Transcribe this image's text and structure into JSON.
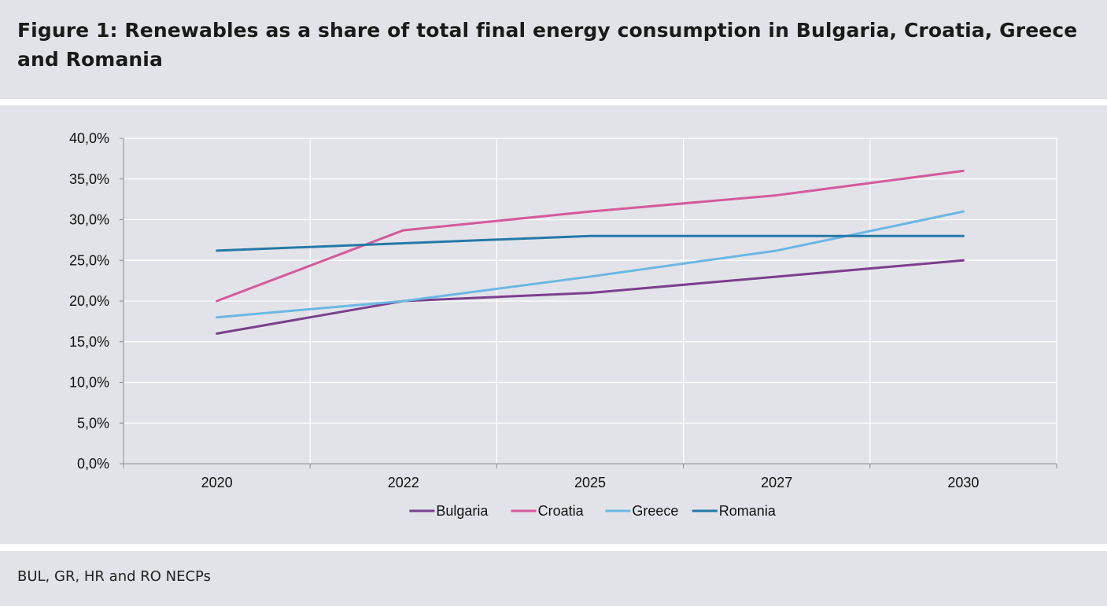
{
  "header": {
    "title": "Figure 1: Renewables as a share of total final energy consumption in Bulgaria, Croatia, Greece and Romania"
  },
  "footer": {
    "source": "BUL, GR, HR and RO NECPs"
  },
  "chart_data": {
    "type": "line",
    "title": "Figure 1: Renewables as a share of total final energy consumption in Bulgaria, Croatia, Greece and Romania",
    "xlabel": "",
    "ylabel": "",
    "categories": [
      "2020",
      "2022",
      "2025",
      "2027",
      "2030"
    ],
    "ylim": [
      0,
      40
    ],
    "yticks": [
      0,
      5,
      10,
      15,
      20,
      25,
      30,
      35,
      40
    ],
    "ytick_labels": [
      "0,0%",
      "5,0%",
      "10,0%",
      "15,0%",
      "20,0%",
      "25,0%",
      "30,0%",
      "35,0%",
      "40,0%"
    ],
    "grid": true,
    "legend_position": "bottom",
    "series": [
      {
        "name": "Bulgaria",
        "color": "#7b3f8c",
        "values": [
          16,
          20,
          21,
          23,
          25
        ]
      },
      {
        "name": "Croatia",
        "color": "#d45a9c",
        "values": [
          20,
          28.7,
          31,
          33,
          36
        ]
      },
      {
        "name": "Greece",
        "color": "#6bb8e3",
        "values": [
          18,
          20,
          23,
          26.2,
          31
        ]
      },
      {
        "name": "Romania",
        "color": "#2479a8",
        "values": [
          26.2,
          27.1,
          28,
          28,
          28
        ]
      }
    ]
  }
}
